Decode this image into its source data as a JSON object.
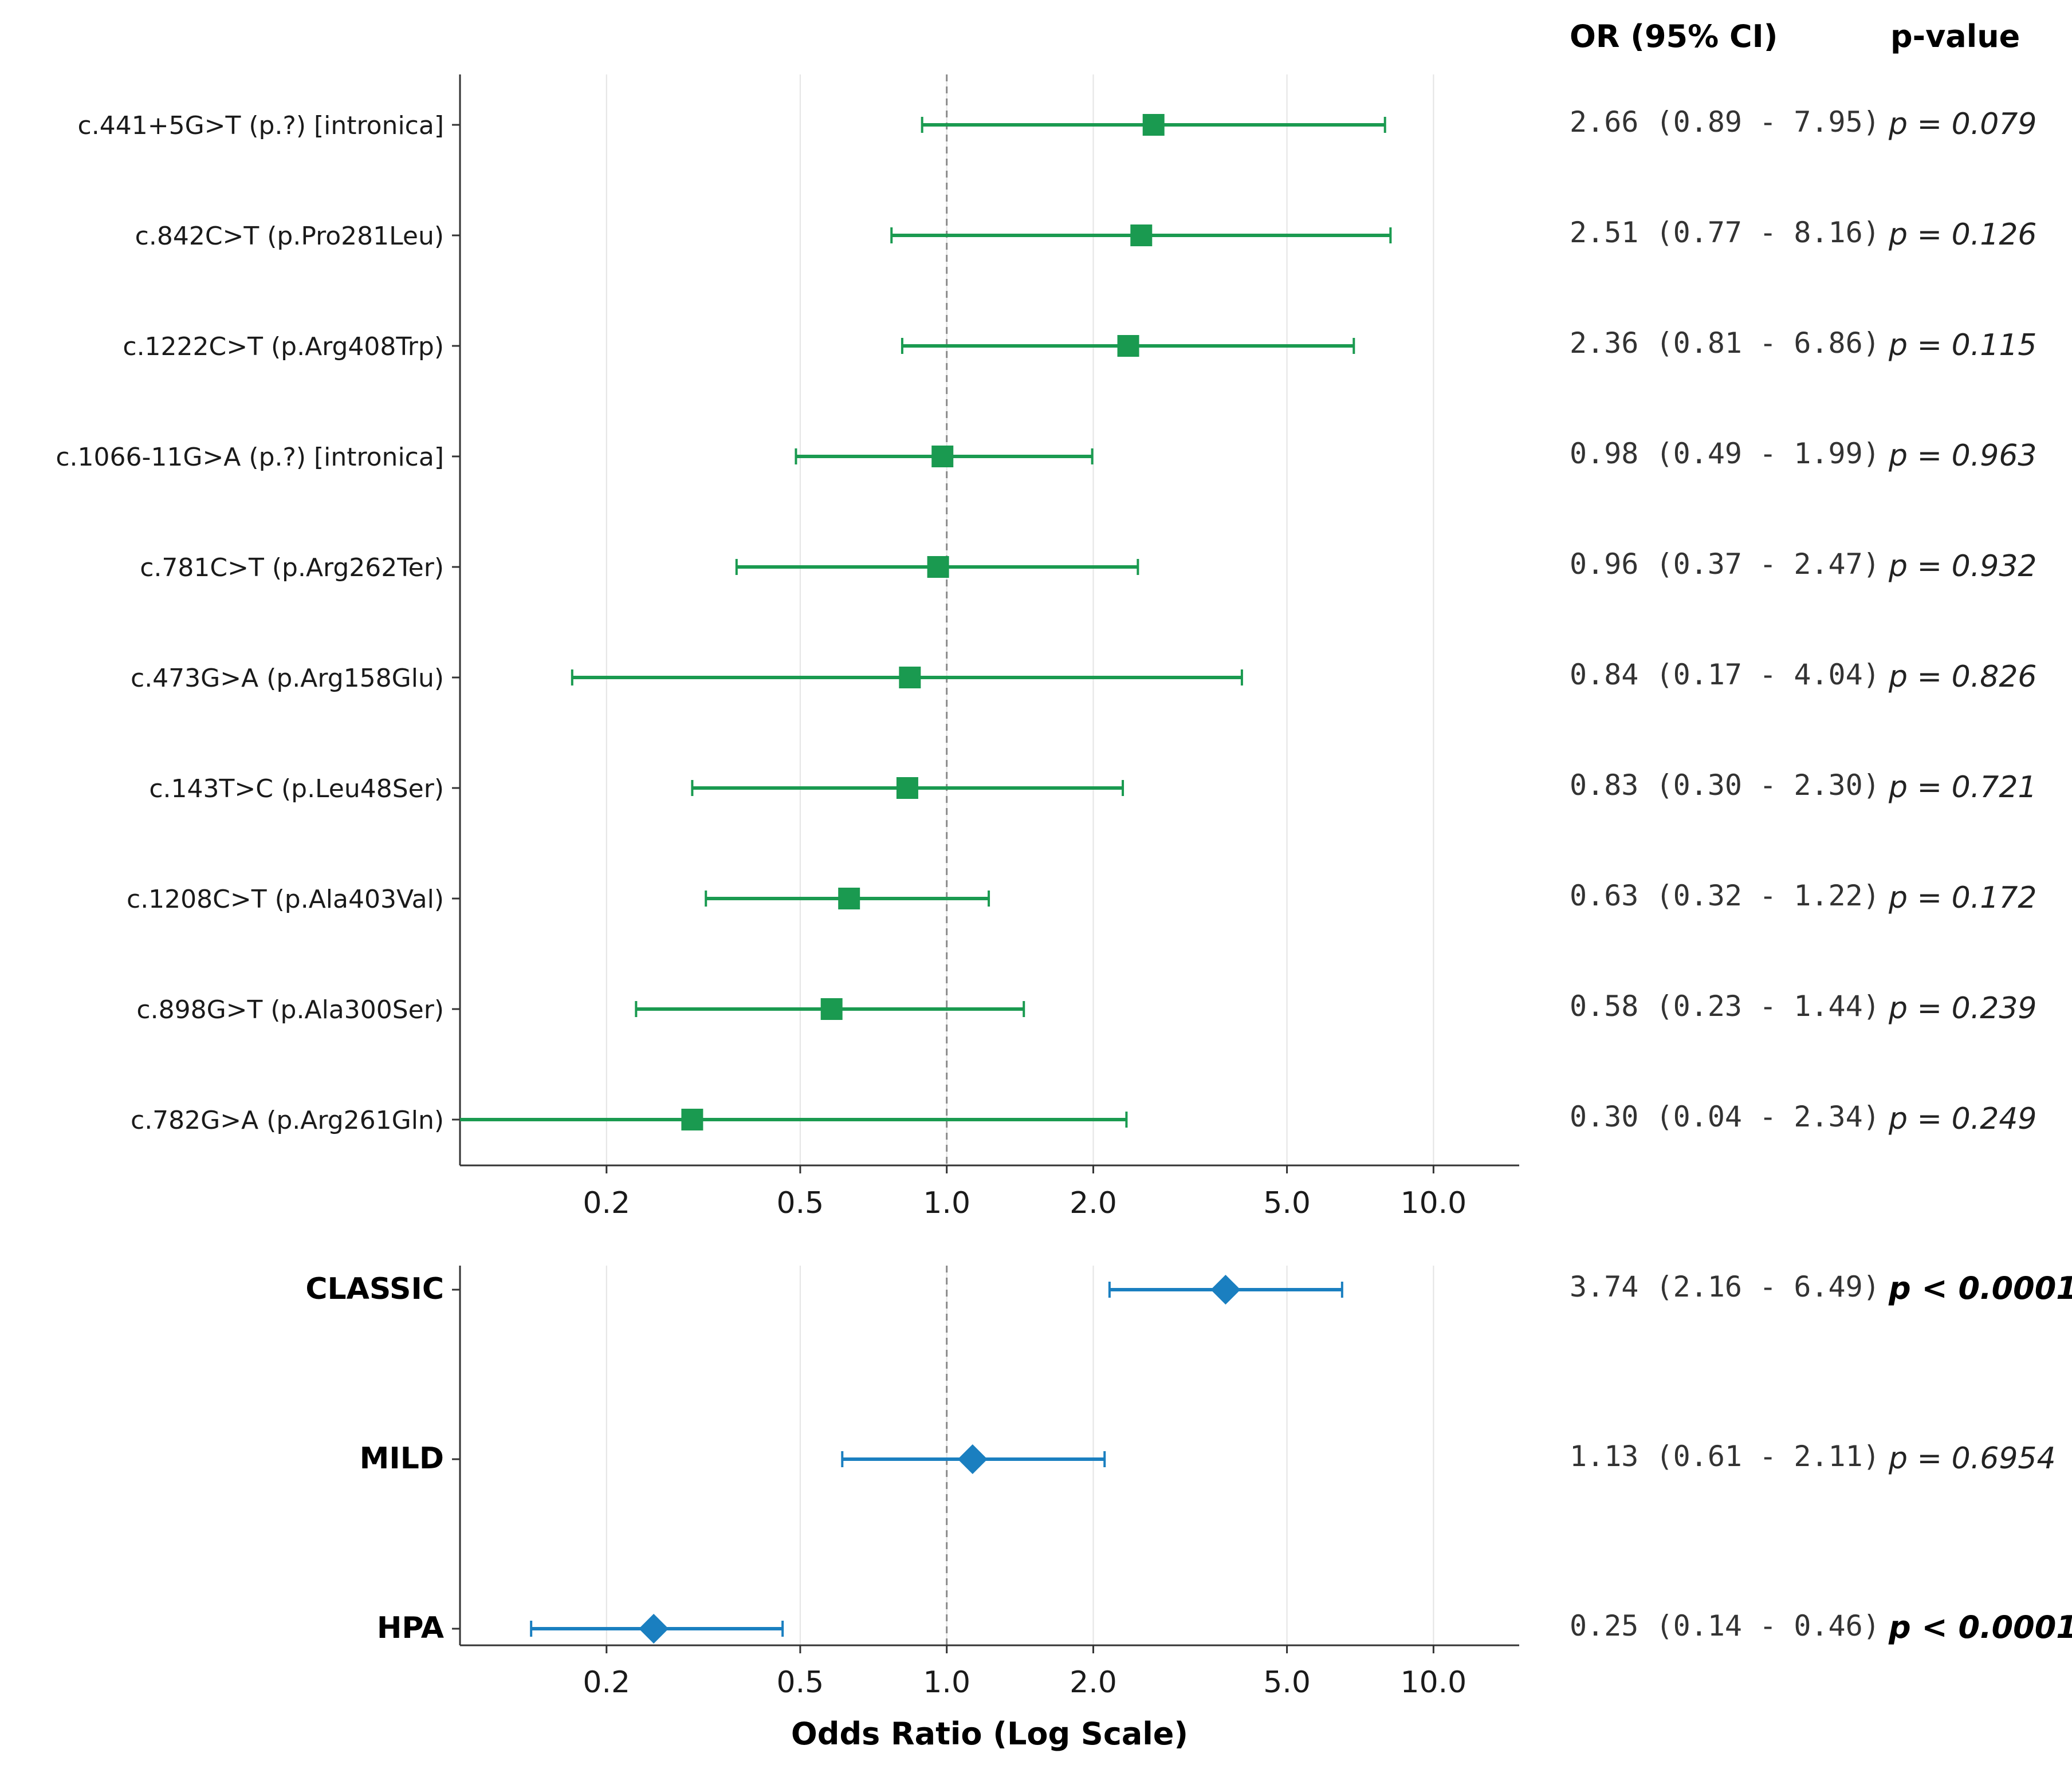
{
  "headers": {
    "or": "OR (95% CI)",
    "p": "p-value"
  },
  "chart_data": [
    {
      "type": "forest",
      "scale": "log",
      "xlim": [
        0.1,
        15
      ],
      "xticks": [
        "0.2",
        "0.5",
        "1.0",
        "2.0",
        "5.0",
        "10.0"
      ],
      "tick_values": [
        0.2,
        0.5,
        1.0,
        2.0,
        5.0,
        10.0
      ],
      "reference_line": 1.0,
      "grid": "vertical",
      "marker": "square",
      "color": "#1a9a50",
      "rows": [
        {
          "label": "c.441+5G>T (p.?) [intronica]",
          "or": 2.66,
          "lo": 0.89,
          "hi": 7.95,
          "or_text": "2.66 (0.89 - 7.95)",
          "p_text": "p = 0.079",
          "bold": false
        },
        {
          "label": "c.842C>T (p.Pro281Leu)",
          "or": 2.51,
          "lo": 0.77,
          "hi": 8.16,
          "or_text": "2.51 (0.77 - 8.16)",
          "p_text": "p = 0.126",
          "bold": false
        },
        {
          "label": "c.1222C>T (p.Arg408Trp)",
          "or": 2.36,
          "lo": 0.81,
          "hi": 6.86,
          "or_text": "2.36 (0.81 - 6.86)",
          "p_text": "p = 0.115",
          "bold": false
        },
        {
          "label": "c.1066-11G>A (p.?) [intronica]",
          "or": 0.98,
          "lo": 0.49,
          "hi": 1.99,
          "or_text": "0.98 (0.49 - 1.99)",
          "p_text": "p = 0.963",
          "bold": false
        },
        {
          "label": "c.781C>T (p.Arg262Ter)",
          "or": 0.96,
          "lo": 0.37,
          "hi": 2.47,
          "or_text": "0.96 (0.37 - 2.47)",
          "p_text": "p = 0.932",
          "bold": false
        },
        {
          "label": "c.473G>A (p.Arg158Glu)",
          "or": 0.84,
          "lo": 0.17,
          "hi": 4.04,
          "or_text": "0.84 (0.17 - 4.04)",
          "p_text": "p = 0.826",
          "bold": false
        },
        {
          "label": "c.143T>C (p.Leu48Ser)",
          "or": 0.83,
          "lo": 0.3,
          "hi": 2.3,
          "or_text": "0.83 (0.30 - 2.30)",
          "p_text": "p = 0.721",
          "bold": false
        },
        {
          "label": "c.1208C>T (p.Ala403Val)",
          "or": 0.63,
          "lo": 0.32,
          "hi": 1.22,
          "or_text": "0.63 (0.32 - 1.22)",
          "p_text": "p = 0.172",
          "bold": false
        },
        {
          "label": "c.898G>T (p.Ala300Ser)",
          "or": 0.58,
          "lo": 0.23,
          "hi": 1.44,
          "or_text": "0.58 (0.23 - 1.44)",
          "p_text": "p = 0.239",
          "bold": false
        },
        {
          "label": "c.782G>A (p.Arg261Gln)",
          "or": 0.3,
          "lo": 0.04,
          "hi": 2.34,
          "or_text": "0.30 (0.04 - 2.34)",
          "p_text": "p = 0.249",
          "bold": false
        }
      ]
    },
    {
      "type": "forest",
      "scale": "log",
      "xlim": [
        0.1,
        15
      ],
      "xticks": [
        "0.2",
        "0.5",
        "1.0",
        "2.0",
        "5.0",
        "10.0"
      ],
      "tick_values": [
        0.2,
        0.5,
        1.0,
        2.0,
        5.0,
        10.0
      ],
      "reference_line": 1.0,
      "grid": "vertical",
      "marker": "diamond",
      "color": "#1a7fc0",
      "xlabel": "Odds Ratio (Log Scale)",
      "rows": [
        {
          "label": "CLASSIC",
          "or": 3.74,
          "lo": 2.16,
          "hi": 6.49,
          "or_text": "3.74 (2.16 - 6.49)",
          "p_text": "p < 0.0001",
          "bold": true
        },
        {
          "label": "MILD",
          "or": 1.13,
          "lo": 0.61,
          "hi": 2.11,
          "or_text": "1.13 (0.61 - 2.11)",
          "p_text": "p = 0.6954",
          "bold": false
        },
        {
          "label": "HPA",
          "or": 0.25,
          "lo": 0.14,
          "hi": 0.46,
          "or_text": "0.25 (0.14 - 0.46)",
          "p_text": "p < 0.0001",
          "bold": true
        }
      ]
    }
  ]
}
